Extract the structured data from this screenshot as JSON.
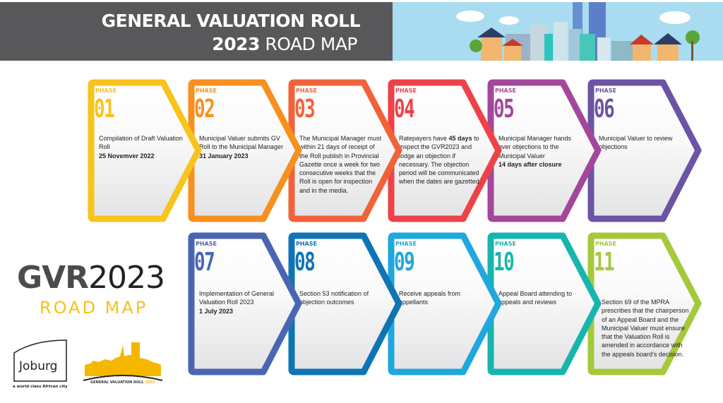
{
  "header": {
    "title_line1": "GENERAL VALUATION ROLL",
    "title_year": "2023",
    "title_line2": "ROAD MAP"
  },
  "side": {
    "gvr": "GVR",
    "year": "2023",
    "road_map": "ROAD MAP"
  },
  "logos": {
    "joburg": "Joburg",
    "joburg_tagline": "a world class African city",
    "gvr_logo_text": "GENERAL VALUATION ROLL",
    "gvr_logo_year": "2023"
  },
  "phase_label": "PHASE",
  "phases": [
    {
      "number": "01",
      "text": "Compilation of Draft Valuation Roll",
      "bold": "25 Novemver 2022",
      "color": "#f9c31b"
    },
    {
      "number": "02",
      "text": "Municipal Valuer submits GV Roll to the Municipal Manager",
      "bold": "31 January 2023",
      "color": "#f7901e"
    },
    {
      "number": "03",
      "text": "The Municipal Manager must within 21 days of receipt of the Roll publish in Provincial Gazette once a week for two consecutive weeks that the Roll is open for inspection and in the media.",
      "bold": "",
      "color": "#f0633a"
    },
    {
      "number": "04",
      "text_pre": "Ratepayers have ",
      "text_bold": "45 days",
      "text": " to inspect the GVR2023 and lodge an objection if necessary. The objection period will be communicated when the dates are gazetted.",
      "bold": "",
      "color": "#ee4249"
    },
    {
      "number": "05",
      "text": "Municipal Manager hands over objections to the Municipal Valuer",
      "bold": "14 days after closure",
      "color": "#a3479c"
    },
    {
      "number": "06",
      "text": "Municipal Valuer to review objections",
      "bold": "",
      "color": "#6c53a4"
    },
    {
      "number": "07",
      "text": "Implementation of General Valuation Roll 2023",
      "bold": "1 July 2023",
      "color": "#4a66b2"
    },
    {
      "number": "08",
      "text": "Section 53 notification of objection outcomes",
      "bold": "",
      "color": "#0f74b4"
    },
    {
      "number": "09",
      "text": "Receive appeals from appellants",
      "bold": "",
      "color": "#1fa7de"
    },
    {
      "number": "10",
      "text": "Appeal Board attending to appeals and reviews",
      "bold": "",
      "color": "#17b5af"
    },
    {
      "number": "11",
      "text": "Section 69 of the MPRA prescribes that the chairperson of an Appeal Board and the Municipal Valuer must ensure that the Valuation Roll is amended in accordance with the appeals board's decision.",
      "bold": "",
      "color": "#a4c93b"
    }
  ]
}
